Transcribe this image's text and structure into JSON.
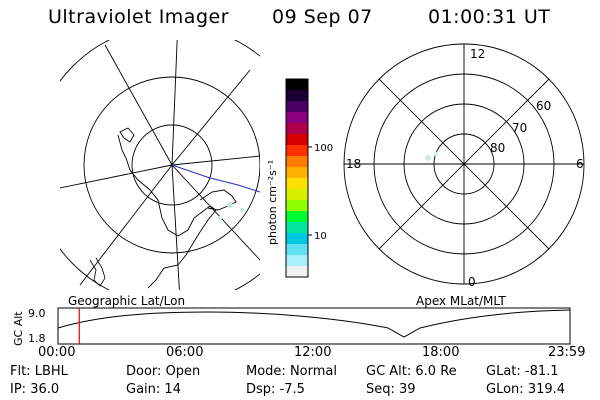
{
  "header": {
    "title": "Ultraviolet Imager",
    "date": "09 Sep 07",
    "time": "01:00:31 UT"
  },
  "map_left": {
    "label": "Geographic Lat/Lon"
  },
  "map_right": {
    "label": "Apex MLat/MLT",
    "mlt_labels": {
      "top": "12",
      "left": "18",
      "right": "6",
      "bottom": "0"
    },
    "lat_labels": [
      "60",
      "70",
      "80"
    ]
  },
  "colorbar": {
    "unit_label": "photon cm⁻²s⁻¹",
    "tick_labels": [
      "100",
      "10"
    ],
    "colors": [
      "#000000",
      "#1a0033",
      "#4b0066",
      "#8b0080",
      "#b0004a",
      "#d40000",
      "#ff3000",
      "#ff7a00",
      "#ffb000",
      "#ffe000",
      "#d8f000",
      "#90ff00",
      "#00ff30",
      "#00e8a0",
      "#00c8e0",
      "#60e0f0",
      "#a8f0f8",
      "#f0f0f0"
    ]
  },
  "altitude_chart": {
    "ylabel": "GC Alt",
    "y_ticks": [
      "9.0",
      "1.8"
    ],
    "x_ticks": [
      "00:00",
      "06:00",
      "12:00",
      "18:00",
      "23:59"
    ],
    "current_marker_time": "01:00",
    "marker_color": "#ff0000"
  },
  "footer": {
    "row1": [
      {
        "label": "Flt:",
        "value": "LBHL"
      },
      {
        "label": "Door:",
        "value": "Open"
      },
      {
        "label": "Mode:",
        "value": "Normal"
      },
      {
        "label": "GC Alt:",
        "value": "6.0 Re"
      },
      {
        "label": "GLat:",
        "value": "-81.1"
      }
    ],
    "row2": [
      {
        "label": "IP:",
        "value": "36.0"
      },
      {
        "label": "Gain:",
        "value": "14"
      },
      {
        "label": "Dsp:",
        "value": "-7.5"
      },
      {
        "label": "Seq:",
        "value": "39"
      },
      {
        "label": "GLon:",
        "value": "319.4"
      }
    ]
  }
}
